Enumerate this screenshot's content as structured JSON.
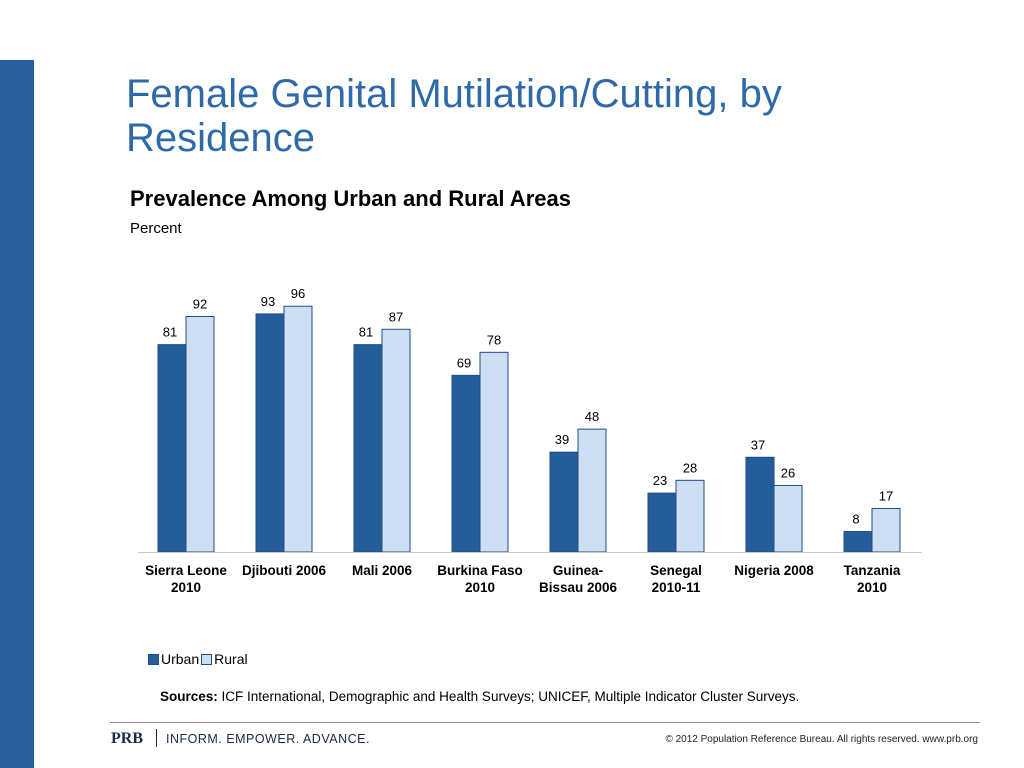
{
  "slide": {
    "title": "Female Genital Mutilation/Cutting, by Residence",
    "subtitle": "Prevalence Among Urban and Rural Areas",
    "unit": "Percent"
  },
  "legend": {
    "urban_label": "Urban",
    "rural_label": "Rural"
  },
  "sources": {
    "label": "Sources:",
    "text": "ICF International, Demographic and Health Surveys; UNICEF, Multiple Indicator Cluster Surveys."
  },
  "footer": {
    "brand": "PRB",
    "tagline": "INFORM. EMPOWER. ADVANCE.",
    "copyright": "© 2012 Population Reference Bureau. All rights reserved. www.prb.org"
  },
  "colors": {
    "urban": "#255c9a",
    "rural": "#cfdff3",
    "bar_border": "#1f4e86",
    "title": "#2e6aa8",
    "side_bar": "#2a5f9e"
  },
  "chart_data": {
    "type": "bar",
    "title": "Prevalence Among Urban and Rural Areas",
    "ylabel": "Percent",
    "xlabel": "",
    "ylim": [
      0,
      100
    ],
    "grid": false,
    "legend_position": "bottom-left",
    "categories": [
      [
        "Sierra Leone",
        "2010"
      ],
      [
        "Djibouti 2006"
      ],
      [
        "Mali 2006"
      ],
      [
        "Burkina Faso",
        "2010"
      ],
      [
        "Guinea-",
        "Bissau 2006"
      ],
      [
        "Senegal",
        "2010-11"
      ],
      [
        "Nigeria 2008"
      ],
      [
        "Tanzania",
        "2010"
      ]
    ],
    "series": [
      {
        "name": "Urban",
        "values": [
          81,
          93,
          81,
          69,
          39,
          23,
          37,
          8
        ]
      },
      {
        "name": "Rural",
        "values": [
          92,
          96,
          87,
          78,
          48,
          28,
          26,
          17
        ]
      }
    ]
  }
}
